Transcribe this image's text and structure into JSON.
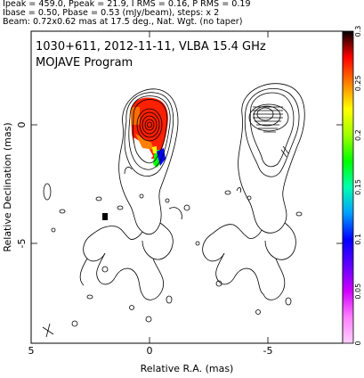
{
  "header": {
    "line1": "Ipeak = 459.0, Ppeak = 21.9, I RMS = 0.16, P RMS = 0.19",
    "line2": "Ibase = 0.50, Pbase = 0.53 (mJy/beam), steps: x 2",
    "line3": "Beam: 0.72x0.62 mas at 17.5 deg., Nat. Wgt. (no taper)"
  },
  "plot": {
    "source_line": "1030+611, 2012-11-11, VLBA 15.4 GHz",
    "program_line": "MOJAVE Program",
    "xlabel": "Relative R.A. (mas)",
    "ylabel": "Relative Declination (mas)",
    "x_ticks": [
      "5",
      "0",
      "-5"
    ],
    "y_ticks": [
      "0",
      "-5"
    ]
  },
  "colorbar": {
    "ticks": [
      "0",
      "0.05",
      "0.1",
      "0.15",
      "0.2",
      "0.25",
      "0.3"
    ],
    "colors": [
      "#ffd0ff",
      "#ff80ff",
      "#d000ff",
      "#6000ff",
      "#0000ff",
      "#00a0ff",
      "#00ffb0",
      "#00ff00",
      "#a0ff00",
      "#ffff00",
      "#ff8000",
      "#ff0000",
      "#000000"
    ]
  }
}
